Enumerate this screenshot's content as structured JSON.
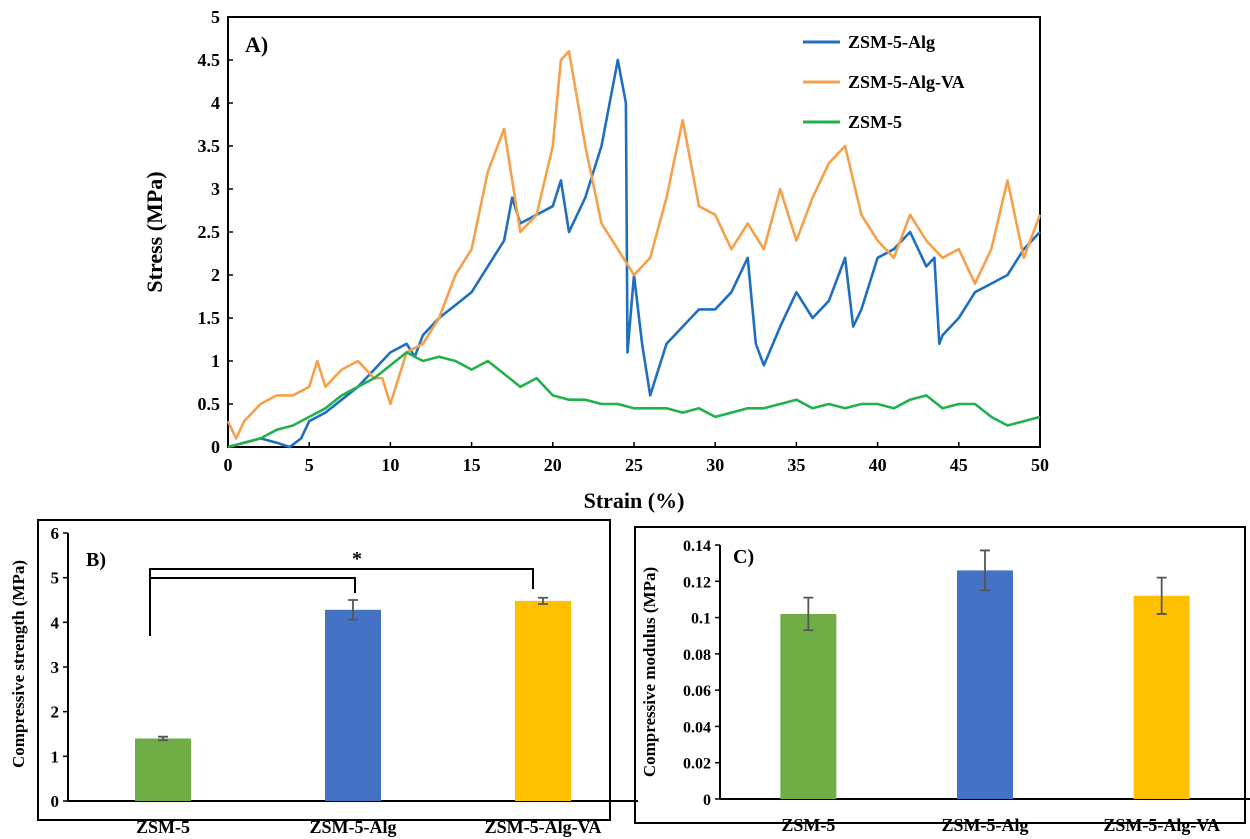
{
  "colors": {
    "zsm5_alg": "#1f6fc1",
    "zsm5_alg_va": "#f5a04a",
    "zsm5": "#22b14c",
    "bar_zsm5": "#70ad47",
    "bar_zsm5_alg": "#4472c4",
    "bar_zsm5_alg_va": "#ffc000",
    "error_bar": "#555555",
    "axis": "#000000"
  },
  "chart_data": [
    {
      "type": "line",
      "panel_label": "A)",
      "xlabel": "Strain (%)",
      "ylabel": "Stress (MPa)",
      "xlim": [
        0,
        50
      ],
      "ylim": [
        0,
        5
      ],
      "x_ticks": [
        "0",
        "5",
        "10",
        "15",
        "20",
        "25",
        "30",
        "35",
        "40",
        "45",
        "50"
      ],
      "y_ticks": [
        "0",
        "0.5",
        "1",
        "1.5",
        "2",
        "2.5",
        "3",
        "3.5",
        "4",
        "4.5",
        "5"
      ],
      "grid": false,
      "legend_position": "top-right",
      "series": [
        {
          "name": "ZSM-5-Alg",
          "color": "#1f6fc1",
          "points": [
            [
              0,
              0
            ],
            [
              1,
              0.05
            ],
            [
              2,
              0.1
            ],
            [
              3,
              0.05
            ],
            [
              3.8,
              0
            ],
            [
              4.5,
              0.1
            ],
            [
              5,
              0.3
            ],
            [
              6,
              0.4
            ],
            [
              7,
              0.55
            ],
            [
              8,
              0.7
            ],
            [
              9,
              0.9
            ],
            [
              10,
              1.1
            ],
            [
              11,
              1.2
            ],
            [
              11.5,
              1.05
            ],
            [
              12,
              1.3
            ],
            [
              13,
              1.5
            ],
            [
              14,
              1.65
            ],
            [
              15,
              1.8
            ],
            [
              16,
              2.1
            ],
            [
              17,
              2.4
            ],
            [
              17.5,
              2.9
            ],
            [
              18,
              2.6
            ],
            [
              19,
              2.7
            ],
            [
              20,
              2.8
            ],
            [
              20.5,
              3.1
            ],
            [
              21,
              2.5
            ],
            [
              22,
              2.9
            ],
            [
              23,
              3.5
            ],
            [
              24,
              4.5
            ],
            [
              24.5,
              4.0
            ],
            [
              24.6,
              1.1
            ],
            [
              25,
              2.0
            ],
            [
              25.5,
              1.2
            ],
            [
              26,
              0.6
            ],
            [
              27,
              1.2
            ],
            [
              28,
              1.4
            ],
            [
              29,
              1.6
            ],
            [
              30,
              1.6
            ],
            [
              31,
              1.8
            ],
            [
              32,
              2.2
            ],
            [
              32.5,
              1.2
            ],
            [
              33,
              0.95
            ],
            [
              34,
              1.4
            ],
            [
              35,
              1.8
            ],
            [
              36,
              1.5
            ],
            [
              37,
              1.7
            ],
            [
              38,
              2.2
            ],
            [
              38.5,
              1.4
            ],
            [
              39,
              1.6
            ],
            [
              40,
              2.2
            ],
            [
              41,
              2.3
            ],
            [
              42,
              2.5
            ],
            [
              43,
              2.1
            ],
            [
              43.5,
              2.2
            ],
            [
              43.8,
              1.2
            ],
            [
              44,
              1.3
            ],
            [
              45,
              1.5
            ],
            [
              46,
              1.8
            ],
            [
              47,
              1.9
            ],
            [
              48,
              2.0
            ],
            [
              49,
              2.3
            ],
            [
              50,
              2.5
            ]
          ]
        },
        {
          "name": "ZSM-5-Alg-VA",
          "color": "#f5a04a",
          "points": [
            [
              0,
              0.3
            ],
            [
              0.5,
              0.1
            ],
            [
              1,
              0.3
            ],
            [
              2,
              0.5
            ],
            [
              3,
              0.6
            ],
            [
              4,
              0.6
            ],
            [
              5,
              0.7
            ],
            [
              5.5,
              1.0
            ],
            [
              6,
              0.7
            ],
            [
              7,
              0.9
            ],
            [
              8,
              1.0
            ],
            [
              9,
              0.8
            ],
            [
              9.5,
              0.8
            ],
            [
              10,
              0.5
            ],
            [
              11,
              1.1
            ],
            [
              12,
              1.2
            ],
            [
              13,
              1.5
            ],
            [
              14,
              2.0
            ],
            [
              15,
              2.3
            ],
            [
              16,
              3.2
            ],
            [
              17,
              3.7
            ],
            [
              18,
              2.5
            ],
            [
              19,
              2.7
            ],
            [
              20,
              3.5
            ],
            [
              20.5,
              4.5
            ],
            [
              21,
              4.6
            ],
            [
              22,
              3.5
            ],
            [
              23,
              2.6
            ],
            [
              24,
              2.3
            ],
            [
              25,
              2.0
            ],
            [
              26,
              2.2
            ],
            [
              27,
              2.9
            ],
            [
              28,
              3.8
            ],
            [
              29,
              2.8
            ],
            [
              30,
              2.7
            ],
            [
              31,
              2.3
            ],
            [
              32,
              2.6
            ],
            [
              33,
              2.3
            ],
            [
              34,
              3.0
            ],
            [
              35,
              2.4
            ],
            [
              36,
              2.9
            ],
            [
              37,
              3.3
            ],
            [
              38,
              3.5
            ],
            [
              39,
              2.7
            ],
            [
              40,
              2.4
            ],
            [
              41,
              2.2
            ],
            [
              42,
              2.7
            ],
            [
              43,
              2.4
            ],
            [
              44,
              2.2
            ],
            [
              45,
              2.3
            ],
            [
              46,
              1.9
            ],
            [
              47,
              2.3
            ],
            [
              48,
              3.1
            ],
            [
              49,
              2.2
            ],
            [
              50,
              2.7
            ]
          ]
        },
        {
          "name": "ZSM-5",
          "color": "#22b14c",
          "points": [
            [
              0,
              0
            ],
            [
              1,
              0.05
            ],
            [
              2,
              0.1
            ],
            [
              3,
              0.2
            ],
            [
              4,
              0.25
            ],
            [
              5,
              0.35
            ],
            [
              6,
              0.45
            ],
            [
              7,
              0.6
            ],
            [
              8,
              0.7
            ],
            [
              9,
              0.8
            ],
            [
              10,
              0.95
            ],
            [
              11,
              1.1
            ],
            [
              12,
              1.0
            ],
            [
              13,
              1.05
            ],
            [
              14,
              1.0
            ],
            [
              15,
              0.9
            ],
            [
              16,
              1.0
            ],
            [
              17,
              0.85
            ],
            [
              18,
              0.7
            ],
            [
              19,
              0.8
            ],
            [
              20,
              0.6
            ],
            [
              21,
              0.55
            ],
            [
              22,
              0.55
            ],
            [
              23,
              0.5
            ],
            [
              24,
              0.5
            ],
            [
              25,
              0.45
            ],
            [
              26,
              0.45
            ],
            [
              27,
              0.45
            ],
            [
              28,
              0.4
            ],
            [
              29,
              0.45
            ],
            [
              30,
              0.35
            ],
            [
              31,
              0.4
            ],
            [
              32,
              0.45
            ],
            [
              33,
              0.45
            ],
            [
              34,
              0.5
            ],
            [
              35,
              0.55
            ],
            [
              36,
              0.45
            ],
            [
              37,
              0.5
            ],
            [
              38,
              0.45
            ],
            [
              39,
              0.5
            ],
            [
              40,
              0.5
            ],
            [
              41,
              0.45
            ],
            [
              42,
              0.55
            ],
            [
              43,
              0.6
            ],
            [
              44,
              0.45
            ],
            [
              45,
              0.5
            ],
            [
              46,
              0.5
            ],
            [
              47,
              0.35
            ],
            [
              48,
              0.25
            ],
            [
              49,
              0.3
            ],
            [
              50,
              0.35
            ]
          ]
        }
      ]
    },
    {
      "type": "bar",
      "panel_label": "B)",
      "xlabel": "",
      "ylabel": "Compressive strength (MPa)",
      "ylim": [
        0,
        6
      ],
      "y_ticks": [
        "0",
        "1",
        "2",
        "3",
        "4",
        "5",
        "6"
      ],
      "categories": [
        "ZSM-5",
        "ZSM-5-Alg",
        "ZSM-5-Alg-VA"
      ],
      "values": [
        1.4,
        4.28,
        4.48
      ],
      "errors": [
        0.04,
        0.22,
        0.07
      ],
      "colors": [
        "#70ad47",
        "#4472c4",
        "#ffc000"
      ],
      "significance_marker": "*"
    },
    {
      "type": "bar",
      "panel_label": "C)",
      "xlabel": "",
      "ylabel": "Compressive modulus (MPa)",
      "ylim": [
        0,
        0.14
      ],
      "y_ticks": [
        "0",
        "0.02",
        "0.04",
        "0.06",
        "0.08",
        "0.1",
        "0.12",
        "0.14"
      ],
      "categories": [
        "ZSM-5",
        "ZSM-5-Alg",
        "ZSM-5-Alg-VA"
      ],
      "values": [
        0.102,
        0.126,
        0.112
      ],
      "errors": [
        0.009,
        0.011,
        0.01
      ],
      "colors": [
        "#70ad47",
        "#4472c4",
        "#ffc000"
      ]
    }
  ]
}
